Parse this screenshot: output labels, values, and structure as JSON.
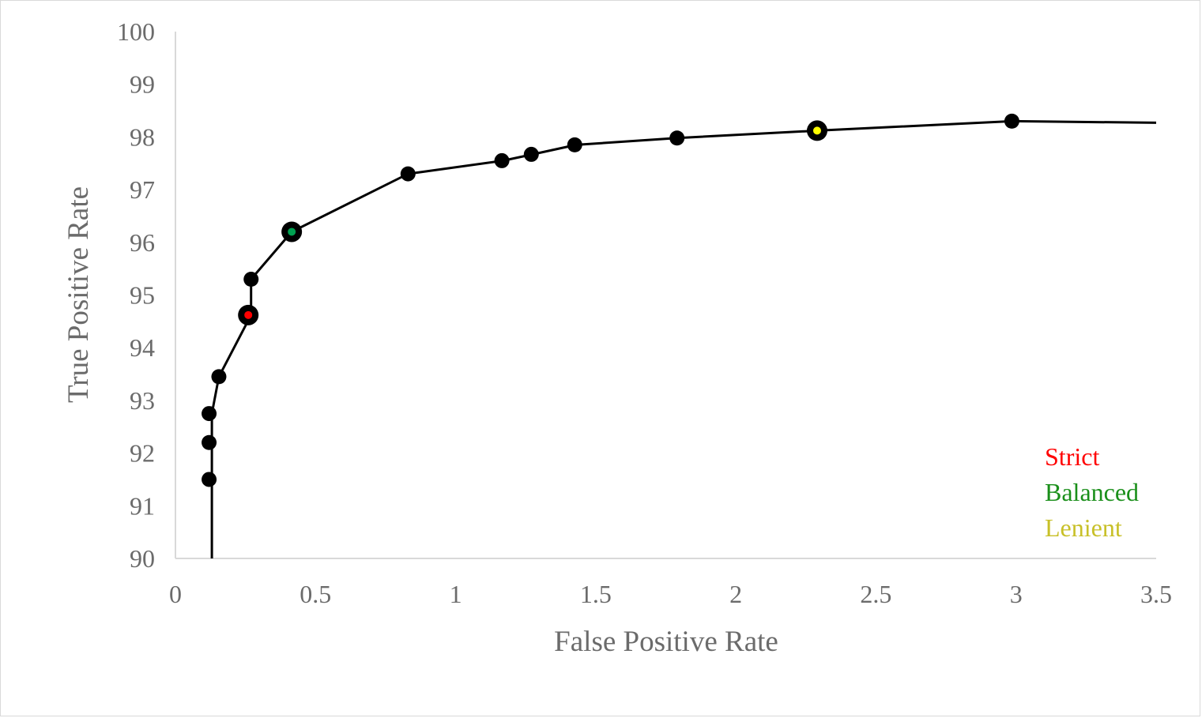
{
  "chart_data": {
    "type": "line",
    "xlabel": "False Positive Rate",
    "ylabel": "True Positive Rate",
    "xlim": [
      0,
      3.5
    ],
    "ylim": [
      90,
      100
    ],
    "x_ticks": [
      "0",
      "0.5",
      "1",
      "1.5",
      "2",
      "2.5",
      "3",
      "3.5"
    ],
    "y_ticks": [
      "90",
      "91",
      "92",
      "93",
      "94",
      "95",
      "96",
      "97",
      "98",
      "99",
      "100"
    ],
    "grid": false,
    "line_color": "#000000",
    "marker_color": "#000000",
    "curve": [
      {
        "x": 0.13,
        "y": 90.0
      },
      {
        "x": 0.13,
        "y": 91.5
      },
      {
        "x": 0.13,
        "y": 92.2
      },
      {
        "x": 0.13,
        "y": 92.75
      },
      {
        "x": 0.155,
        "y": 93.45
      },
      {
        "x": 0.27,
        "y": 94.62
      },
      {
        "x": 0.27,
        "y": 95.3
      },
      {
        "x": 0.415,
        "y": 96.2
      },
      {
        "x": 0.83,
        "y": 97.3
      },
      {
        "x": 1.17,
        "y": 97.55
      },
      {
        "x": 1.275,
        "y": 97.67
      },
      {
        "x": 1.43,
        "y": 97.85
      },
      {
        "x": 1.79,
        "y": 97.98
      },
      {
        "x": 2.29,
        "y": 98.12
      },
      {
        "x": 2.985,
        "y": 98.3
      },
      {
        "x": 3.5,
        "y": 98.27
      }
    ],
    "points": [
      {
        "x": 0.12,
        "y": 91.5
      },
      {
        "x": 0.12,
        "y": 92.2
      },
      {
        "x": 0.12,
        "y": 92.75
      },
      {
        "x": 0.155,
        "y": 93.45
      },
      {
        "x": 0.27,
        "y": 95.3
      },
      {
        "x": 0.83,
        "y": 97.3
      },
      {
        "x": 1.165,
        "y": 97.55
      },
      {
        "x": 1.27,
        "y": 97.67
      },
      {
        "x": 1.425,
        "y": 97.85
      },
      {
        "x": 1.79,
        "y": 97.98
      },
      {
        "x": 2.985,
        "y": 98.3
      }
    ],
    "highlighted": [
      {
        "name": "Strict",
        "x": 0.26,
        "y": 94.62,
        "color": "#ff0000"
      },
      {
        "name": "Balanced",
        "x": 0.415,
        "y": 96.2,
        "color": "#00a050"
      },
      {
        "name": "Lenient",
        "x": 2.29,
        "y": 98.12,
        "color": "#ffff00"
      }
    ],
    "legend": {
      "placement": "bottom-right",
      "entries": [
        {
          "label": "Strict",
          "color": "#ff0000"
        },
        {
          "label": "Balanced",
          "color": "#1a8f1a"
        },
        {
          "label": "Lenient",
          "color": "#c8c028"
        }
      ]
    }
  }
}
